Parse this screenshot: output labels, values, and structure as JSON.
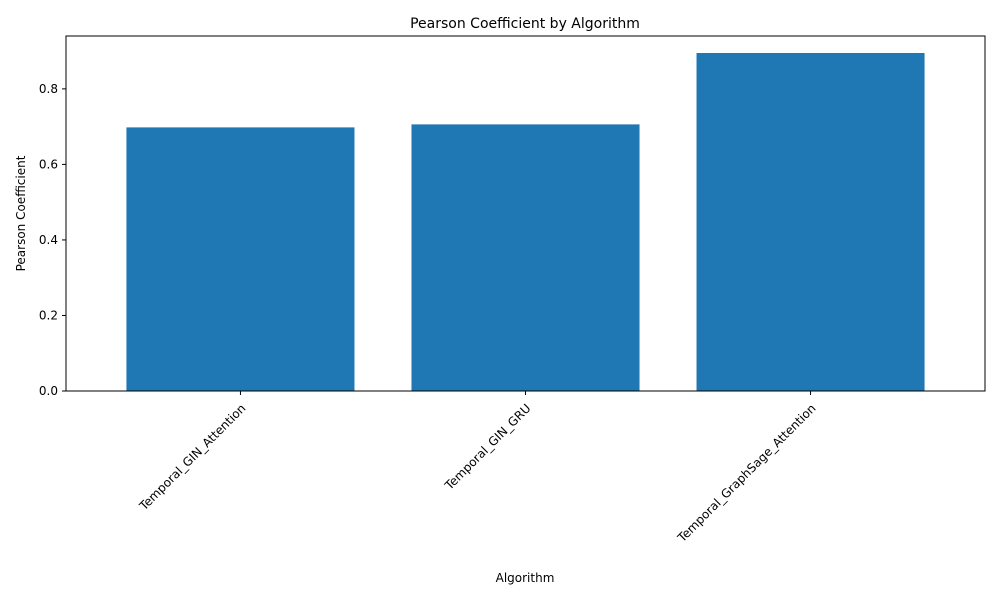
{
  "chart_data": {
    "type": "bar",
    "title": "Pearson Coefficient by Algorithm",
    "xlabel": "Algorithm",
    "ylabel": "Pearson Coefficient",
    "categories": [
      "Temporal_GIN_Attention",
      "Temporal_GIN_GRU",
      "Temporal_GraphSage_Attention"
    ],
    "values": [
      0.698,
      0.706,
      0.895
    ],
    "ylim": [
      0,
      0.94
    ],
    "yticks": [
      0.0,
      0.2,
      0.4,
      0.6,
      0.8
    ],
    "ytick_labels": [
      "0.0",
      "0.2",
      "0.4",
      "0.6",
      "0.8"
    ],
    "bar_color": "#1f77b4",
    "grid": false,
    "legend": "none"
  }
}
